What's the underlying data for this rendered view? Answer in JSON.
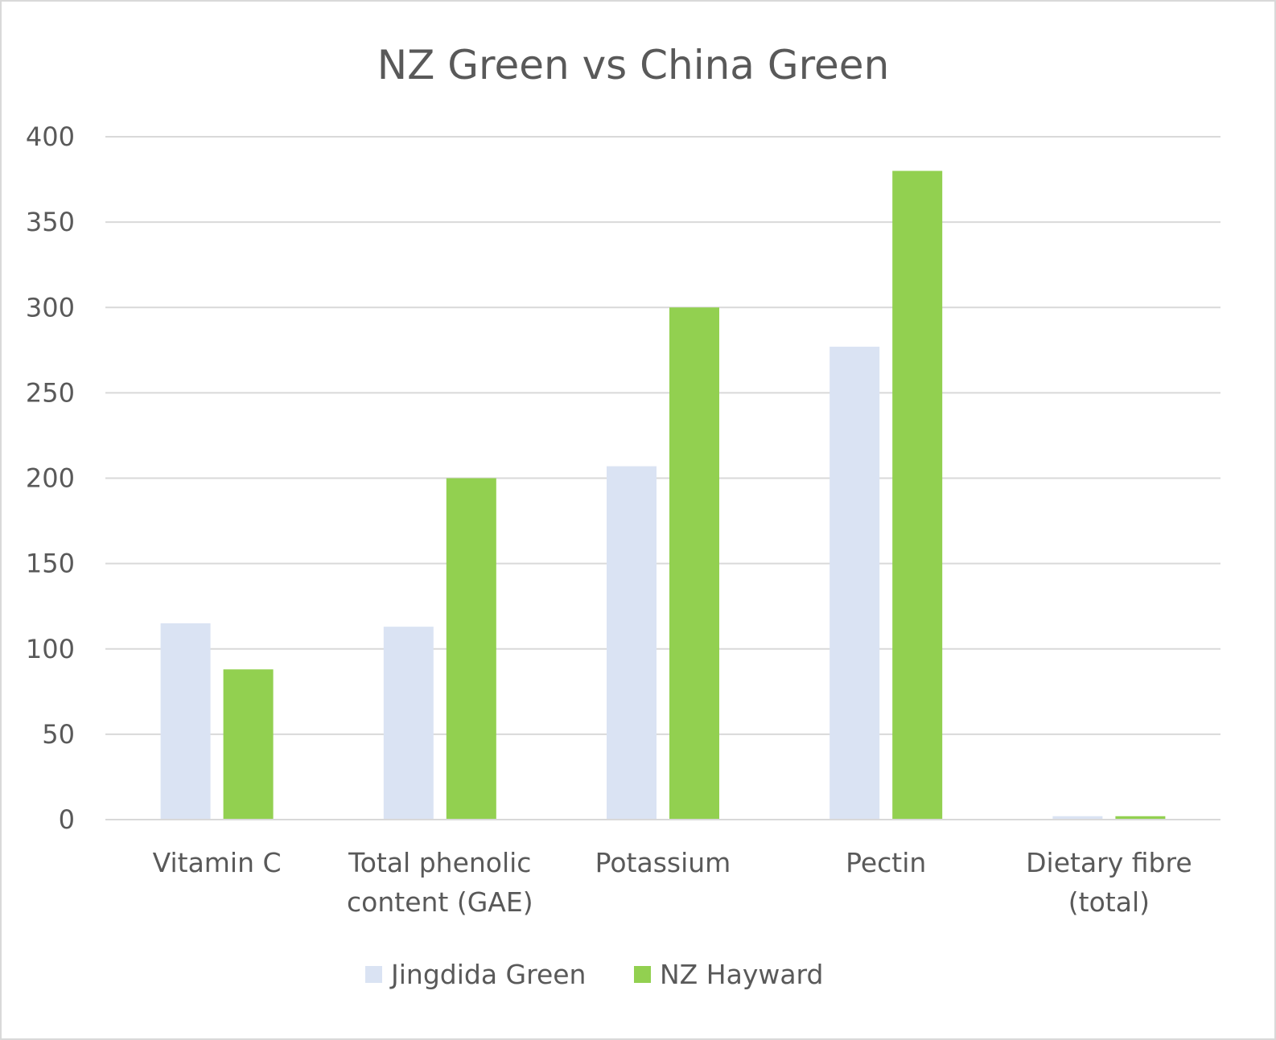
{
  "chart_data": {
    "type": "bar",
    "title": "NZ Green vs China Green",
    "xlabel": "",
    "ylabel": "",
    "categories": [
      [
        "Vitamin C"
      ],
      [
        "Total phenolic",
        "content (GAE)"
      ],
      [
        "Potassium"
      ],
      [
        "Pectin"
      ],
      [
        "Dietary fibre",
        "(total)"
      ]
    ],
    "series": [
      {
        "name": "Jingdida Green",
        "color": "#dae3f3",
        "values": [
          115,
          113,
          207,
          277,
          2
        ]
      },
      {
        "name": "NZ Hayward",
        "color": "#92d050",
        "values": [
          88,
          200,
          300,
          380,
          2
        ]
      }
    ],
    "ylim": [
      0,
      400
    ],
    "yticks": [
      0,
      50,
      100,
      150,
      200,
      250,
      300,
      350,
      400
    ],
    "grid": true,
    "legend_position": "bottom"
  }
}
